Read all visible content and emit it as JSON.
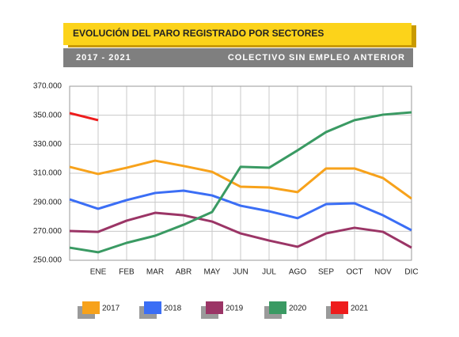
{
  "chart_data": {
    "type": "line",
    "title": "EVOLUCIÓN DEL PARO REGISTRADO POR SECTORES",
    "subtitle": "2017 - 2021",
    "annotation": "COLECTIVO SIN EMPLEO ANTERIOR",
    "categories": [
      null,
      "ENE",
      "FEB",
      "MAR",
      "ABR",
      "MAY",
      "JUN",
      "JUL",
      "AGO",
      "SEP",
      "OCT",
      "NOV",
      "DIC"
    ],
    "series": [
      {
        "name": "2017",
        "color": "#f7a21b",
        "values": [
          314400,
          309500,
          313800,
          318700,
          315000,
          311000,
          300700,
          300200,
          297000,
          313300,
          313300,
          306700,
          292500
        ]
      },
      {
        "name": "2018",
        "color": "#3b6ef5",
        "values": [
          292000,
          285500,
          291500,
          296400,
          298000,
          294700,
          287600,
          283800,
          279000,
          288700,
          289300,
          281000,
          270700
        ]
      },
      {
        "name": "2019",
        "color": "#9b3566",
        "values": [
          270200,
          269600,
          277300,
          282700,
          281000,
          276700,
          268500,
          263600,
          259300,
          268500,
          272400,
          269600,
          258700
        ]
      },
      {
        "name": "2020",
        "color": "#3a9a63",
        "values": [
          258700,
          255500,
          262000,
          266900,
          274500,
          283300,
          314400,
          313800,
          325800,
          338400,
          346600,
          350400,
          352000
        ]
      },
      {
        "name": "2021",
        "color": "#ee1c1c",
        "values": [
          351500,
          346600,
          null,
          null,
          null,
          null,
          null,
          null,
          null,
          null,
          null,
          null,
          null
        ]
      }
    ],
    "ylim": [
      250000,
      370000
    ],
    "yticks": [
      {
        "value": 250000,
        "label": "250.000"
      },
      {
        "value": 270000,
        "label": "270.000"
      },
      {
        "value": 290000,
        "label": "290.000"
      },
      {
        "value": 310000,
        "label": "310.000"
      },
      {
        "value": 330000,
        "label": "330.000"
      },
      {
        "value": 350000,
        "label": "350.000"
      },
      {
        "value": 370000,
        "label": "370.000"
      }
    ],
    "grid": true
  }
}
